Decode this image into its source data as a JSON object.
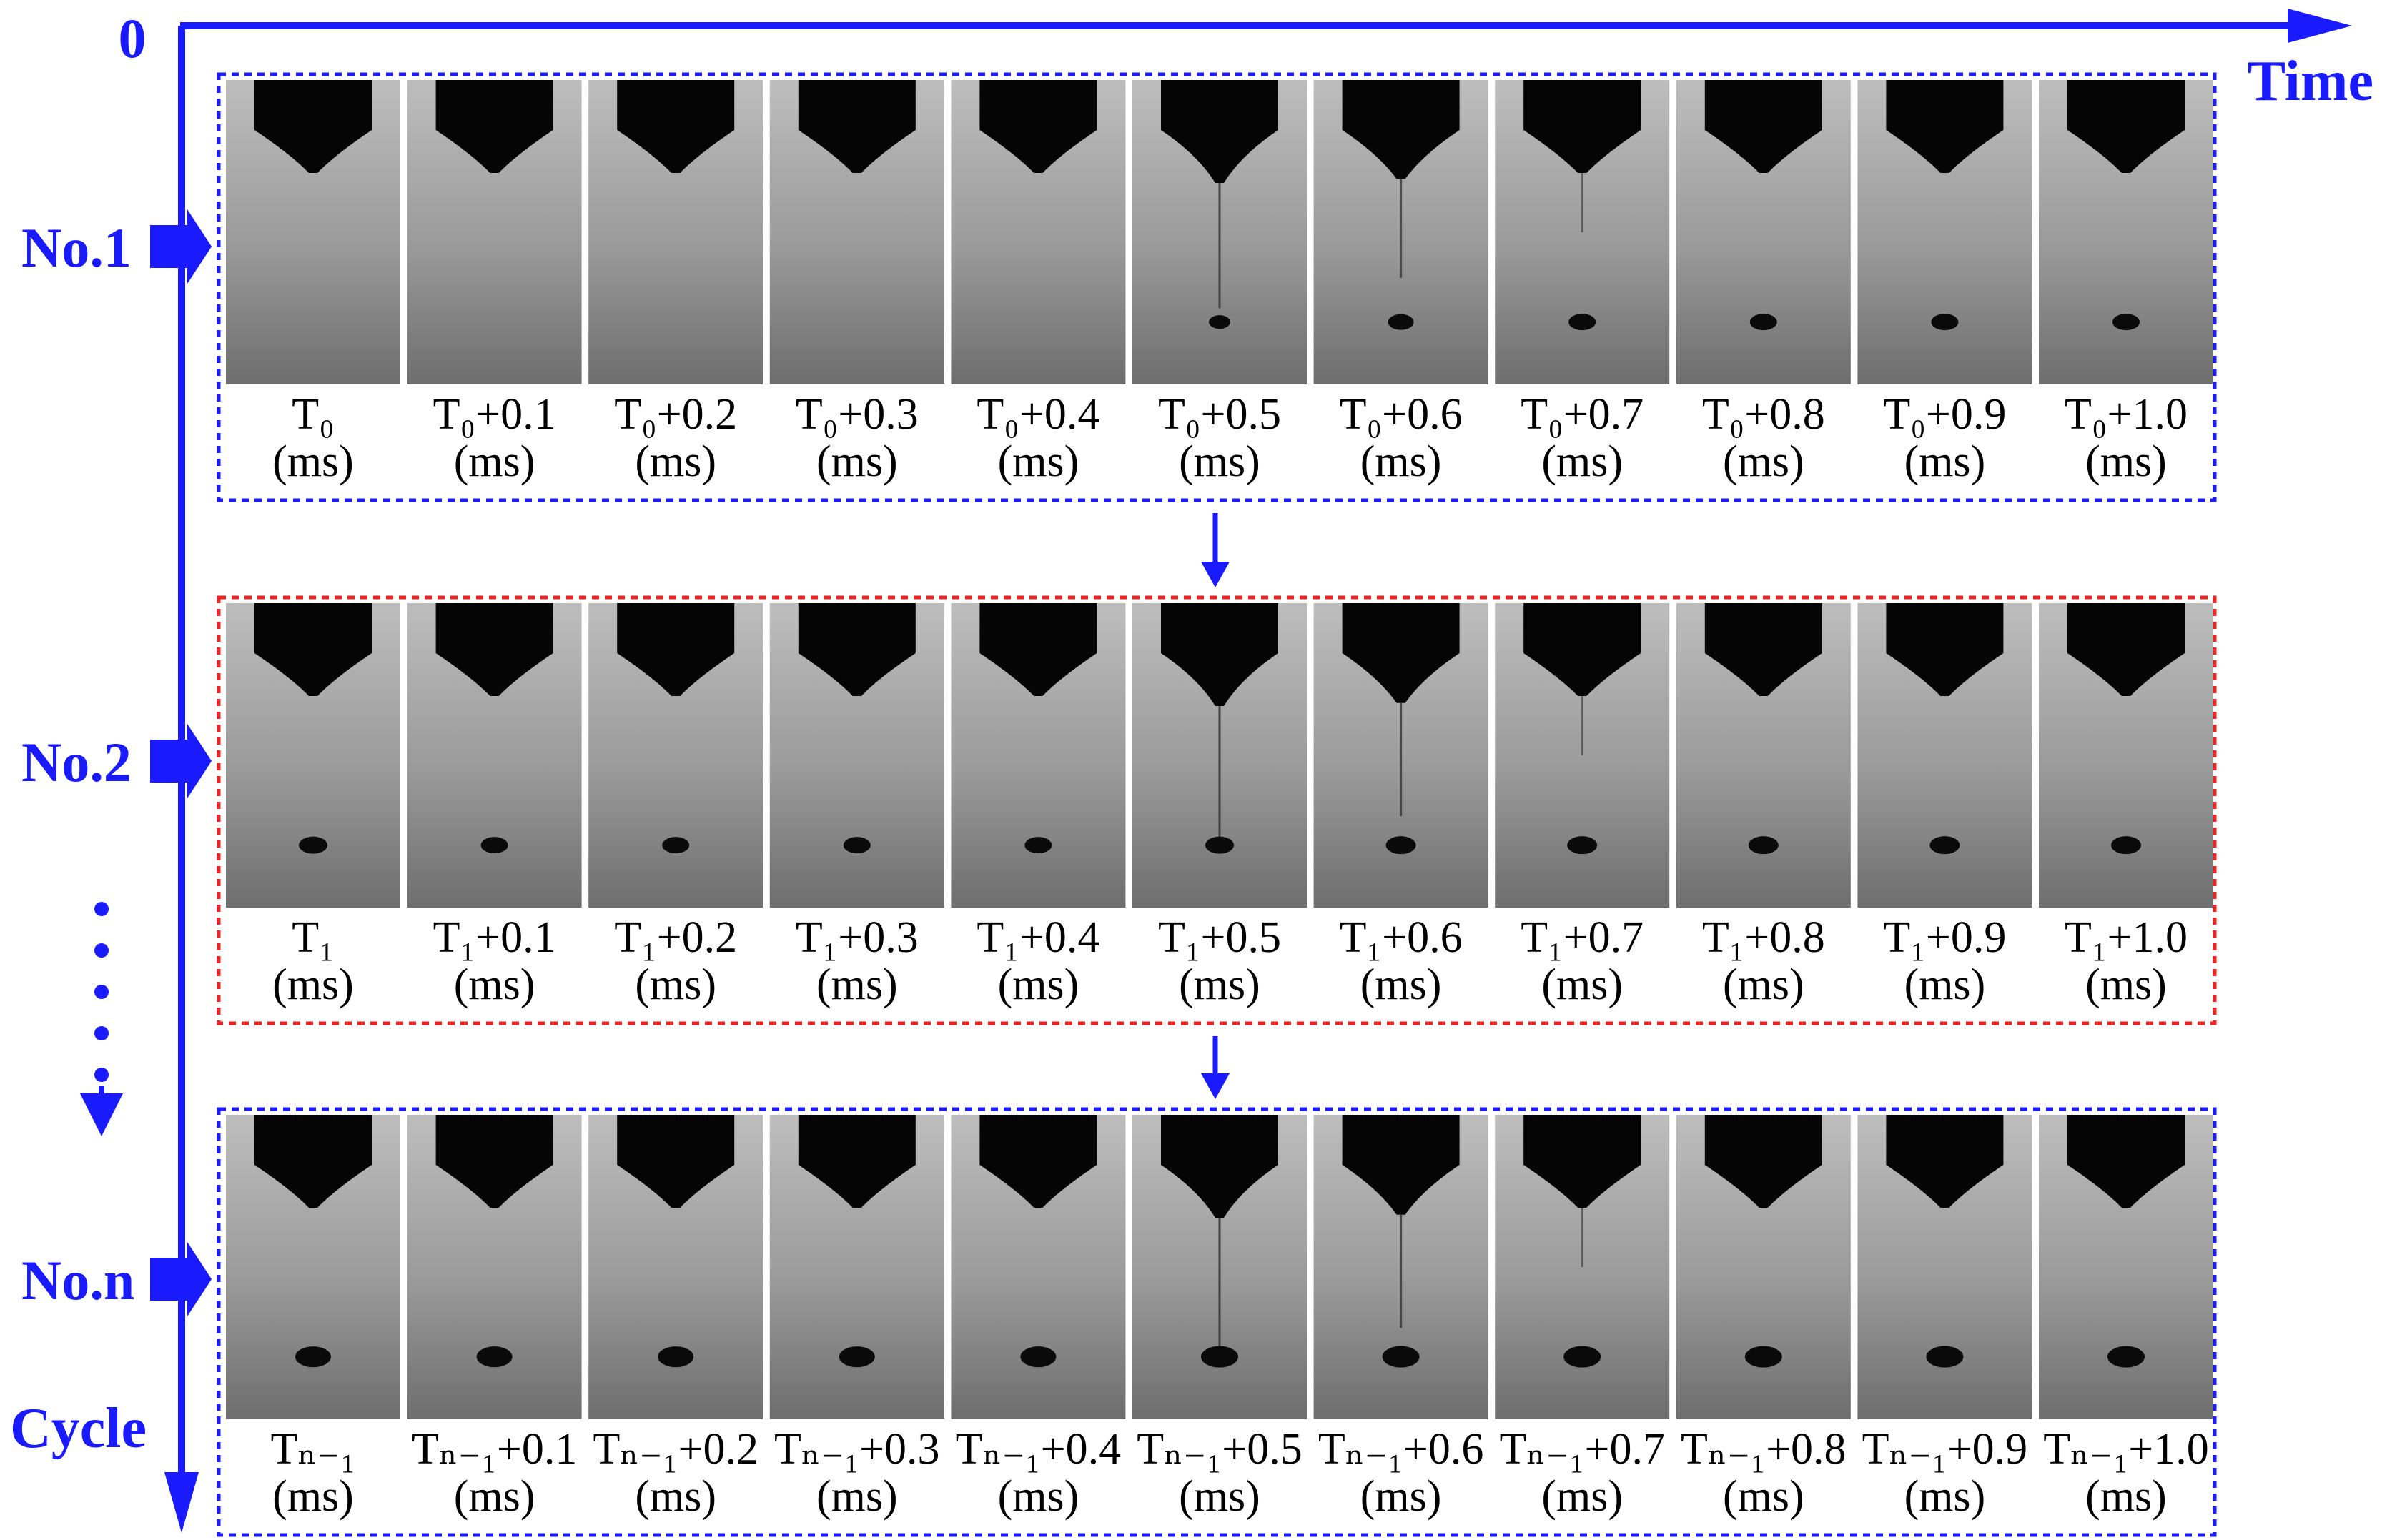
{
  "axis": {
    "origin_label": "0",
    "time_label": "Time",
    "cycle_label": "Cycle",
    "color": "#1a1aff"
  },
  "rows": [
    {
      "label": "No.1",
      "box_color": "#1a1aff",
      "captions": [
        {
          "top": "T₀",
          "bottom": "(ms)"
        },
        {
          "top": "T₀+0.1",
          "bottom": "(ms)"
        },
        {
          "top": "T₀+0.2",
          "bottom": "(ms)"
        },
        {
          "top": "T₀+0.3",
          "bottom": "(ms)"
        },
        {
          "top": "T₀+0.4",
          "bottom": "(ms)"
        },
        {
          "top": "T₀+0.5",
          "bottom": "(ms)"
        },
        {
          "top": "T₀+0.6",
          "bottom": "(ms)"
        },
        {
          "top": "T₀+0.7",
          "bottom": "(ms)"
        },
        {
          "top": "T₀+0.8",
          "bottom": "(ms)"
        },
        {
          "top": "T₀+0.9",
          "bottom": "(ms)"
        },
        {
          "top": "T₀+1.0",
          "bottom": "(ms)"
        }
      ],
      "ligament": [
        0,
        0,
        0,
        0,
        0,
        0.8,
        0.6,
        0.3,
        0,
        0,
        0
      ],
      "neck": [
        0,
        0,
        0,
        0,
        0,
        1,
        0.6,
        0,
        0,
        0,
        0
      ],
      "drop": [
        0,
        0,
        0,
        0,
        0,
        0.5,
        0.8,
        0.9,
        0.9,
        0.9,
        0.9
      ]
    },
    {
      "label": "No.2",
      "box_color": "#ee2222",
      "captions": [
        {
          "top": "T₁",
          "bottom": "(ms)"
        },
        {
          "top": "T₁+0.1",
          "bottom": "(ms)"
        },
        {
          "top": "T₁+0.2",
          "bottom": "(ms)"
        },
        {
          "top": "T₁+0.3",
          "bottom": "(ms)"
        },
        {
          "top": "T₁+0.4",
          "bottom": "(ms)"
        },
        {
          "top": "T₁+0.5",
          "bottom": "(ms)"
        },
        {
          "top": "T₁+0.6",
          "bottom": "(ms)"
        },
        {
          "top": "T₁+0.7",
          "bottom": "(ms)"
        },
        {
          "top": "T₁+0.8",
          "bottom": "(ms)"
        },
        {
          "top": "T₁+0.9",
          "bottom": "(ms)"
        },
        {
          "top": "T₁+1.0",
          "bottom": "(ms)"
        }
      ],
      "ligament": [
        0,
        0,
        0,
        0,
        0,
        0.9,
        0.7,
        0.3,
        0,
        0,
        0
      ],
      "neck": [
        0,
        0,
        0,
        0,
        0,
        1,
        0.7,
        0,
        0,
        0,
        0
      ],
      "drop": [
        1,
        0.9,
        0.9,
        0.9,
        0.9,
        1,
        1.1,
        1.1,
        1.1,
        1.1,
        1.1
      ]
    },
    {
      "label": "No.n",
      "box_color": "#1a1aff",
      "captions": [
        {
          "top": "Tₙ₋₁",
          "bottom": "(ms)"
        },
        {
          "top": "Tₙ₋₁+0.1",
          "bottom": "(ms)"
        },
        {
          "top": "Tₙ₋₁+0.2",
          "bottom": "(ms)"
        },
        {
          "top": "Tₙ₋₁+0.3",
          "bottom": "(ms)"
        },
        {
          "top": "Tₙ₋₁+0.4",
          "bottom": "(ms)"
        },
        {
          "top": "Tₙ₋₁+0.5",
          "bottom": "(ms)"
        },
        {
          "top": "Tₙ₋₁+0.6",
          "bottom": "(ms)"
        },
        {
          "top": "Tₙ₋₁+0.7",
          "bottom": "(ms)"
        },
        {
          "top": "Tₙ₋₁+0.8",
          "bottom": "(ms)"
        },
        {
          "top": "Tₙ₋₁+0.9",
          "bottom": "(ms)"
        },
        {
          "top": "Tₙ₋₁+1.0",
          "bottom": "(ms)"
        }
      ],
      "ligament": [
        0,
        0,
        0,
        0,
        0,
        0.9,
        0.7,
        0.3,
        0,
        0,
        0
      ],
      "neck": [
        0,
        0,
        0,
        0,
        0,
        1,
        0.7,
        0,
        0,
        0,
        0
      ],
      "drop": [
        1.5,
        1.5,
        1.5,
        1.5,
        1.5,
        1.6,
        1.6,
        1.6,
        1.6,
        1.6,
        1.6
      ]
    }
  ]
}
